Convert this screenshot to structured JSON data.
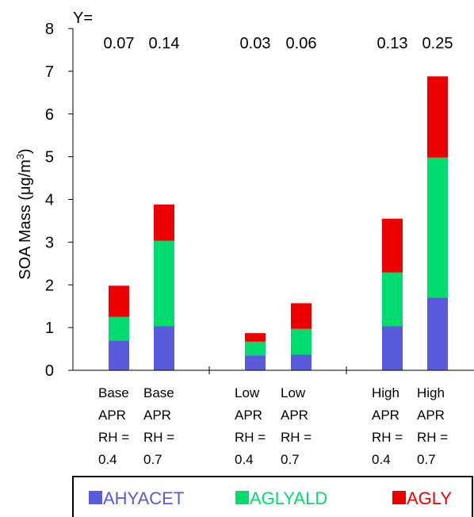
{
  "chart_data": {
    "type": "bar",
    "stacked": true,
    "ylabel": "SOA Mass (μg/m",
    "ylabel_superscript": "3",
    "ylabel_close": ")",
    "ylim": [
      0,
      8
    ],
    "yticks": [
      0,
      1,
      2,
      3,
      4,
      5,
      6,
      7,
      8
    ],
    "y_fraction_prefix": "Y=",
    "y_fractions": [
      "0.07",
      "0.14",
      "0.03",
      "0.06",
      "0.13",
      "0.25"
    ],
    "categories": [
      [
        "Base",
        "APR",
        "RH =",
        "0.4"
      ],
      [
        "Base",
        "APR",
        "RH =",
        "0.7"
      ],
      [
        "Low",
        "APR",
        "RH =",
        "0.4"
      ],
      [
        "Low",
        "APR",
        "RH =",
        "0.7"
      ],
      [
        "High",
        "APR",
        "RH =",
        "0.4"
      ],
      [
        "High",
        "APR",
        "RH =",
        "0.7"
      ]
    ],
    "series": [
      {
        "name": "AHYACET",
        "color": "#5a5adc",
        "values": [
          0.7,
          1.03,
          0.35,
          0.37,
          1.03,
          1.7
        ]
      },
      {
        "name": "AGLYALD",
        "color": "#00dc6e",
        "values": [
          0.55,
          2.0,
          0.32,
          0.6,
          1.26,
          3.28
        ]
      },
      {
        "name": "AGLY",
        "color": "#ee0000",
        "values": [
          0.73,
          0.85,
          0.2,
          0.6,
          1.26,
          1.9
        ]
      }
    ],
    "grid": false,
    "legend_position": "bottom"
  }
}
